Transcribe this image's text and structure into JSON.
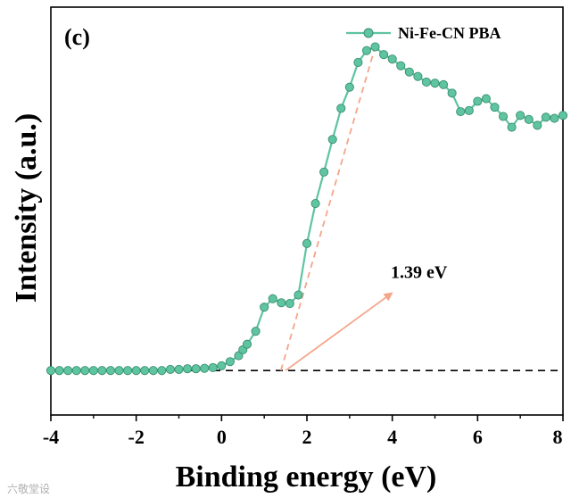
{
  "panel_label": "(c)",
  "watermark": "六敬堂设",
  "chart_data": {
    "type": "line",
    "title": "",
    "xlabel": "Binding energy (eV)",
    "ylabel": "Intensity (a.u.)",
    "xlim": [
      -4,
      8
    ],
    "ylim": [
      0,
      100
    ],
    "xticks": [
      -4,
      -2,
      0,
      2,
      4,
      6,
      8
    ],
    "grid": false,
    "legend": {
      "position": "top-right",
      "entries": [
        "Ni-Fe-CN PBA"
      ]
    },
    "colors": {
      "series": "#5fc4a0",
      "marker_edge": "#3a8f72",
      "fit": "#f4a58a",
      "baseline": "#000000",
      "axis": "#000000"
    },
    "series": [
      {
        "name": "Ni-Fe-CN PBA",
        "x": [
          -4.0,
          -3.8,
          -3.6,
          -3.4,
          -3.2,
          -3.0,
          -2.8,
          -2.6,
          -2.4,
          -2.2,
          -2.0,
          -1.8,
          -1.6,
          -1.4,
          -1.2,
          -1.0,
          -0.8,
          -0.6,
          -0.4,
          -0.2,
          0.0,
          0.2,
          0.4,
          0.5,
          0.6,
          0.8,
          1.0,
          1.2,
          1.4,
          1.6,
          1.8,
          2.0,
          2.2,
          2.4,
          2.6,
          2.8,
          3.0,
          3.2,
          3.4,
          3.6,
          3.8,
          4.0,
          4.2,
          4.4,
          4.6,
          4.8,
          5.0,
          5.2,
          5.4,
          5.6,
          5.8,
          6.0,
          6.2,
          6.4,
          6.6,
          6.8,
          7.0,
          7.2,
          7.4,
          7.6,
          7.8,
          8.0
        ],
        "y": [
          12.0,
          12.0,
          12.0,
          12.0,
          12.0,
          12.0,
          12.0,
          12.0,
          12.0,
          12.0,
          12.0,
          12.0,
          12.0,
          12.0,
          12.3,
          12.3,
          12.5,
          12.5,
          12.6,
          12.8,
          13.3,
          14.4,
          16.0,
          17.6,
          19.1,
          22.6,
          29.1,
          31.4,
          30.3,
          30.1,
          32.4,
          46.3,
          57.1,
          65.6,
          74.4,
          82.8,
          88.5,
          95.2,
          98.4,
          99.4,
          97.3,
          96.1,
          94.3,
          92.6,
          91.4,
          89.9,
          89.6,
          89.2,
          86.9,
          81.9,
          82.2,
          84.7,
          85.4,
          83.1,
          80.6,
          77.7,
          80.9,
          79.8,
          78.2,
          80.4,
          80.1,
          80.9
        ]
      }
    ],
    "onset_fit": {
      "x": [
        1.39,
        3.6
      ],
      "y": [
        12.0,
        99.4
      ]
    },
    "baseline_y": 12.0,
    "annotation": {
      "text": "1.39 eV",
      "from": [
        1.5,
        12.0
      ],
      "to": [
        4.0,
        33.0
      ],
      "label_at": [
        4.05,
        37.0
      ]
    }
  }
}
